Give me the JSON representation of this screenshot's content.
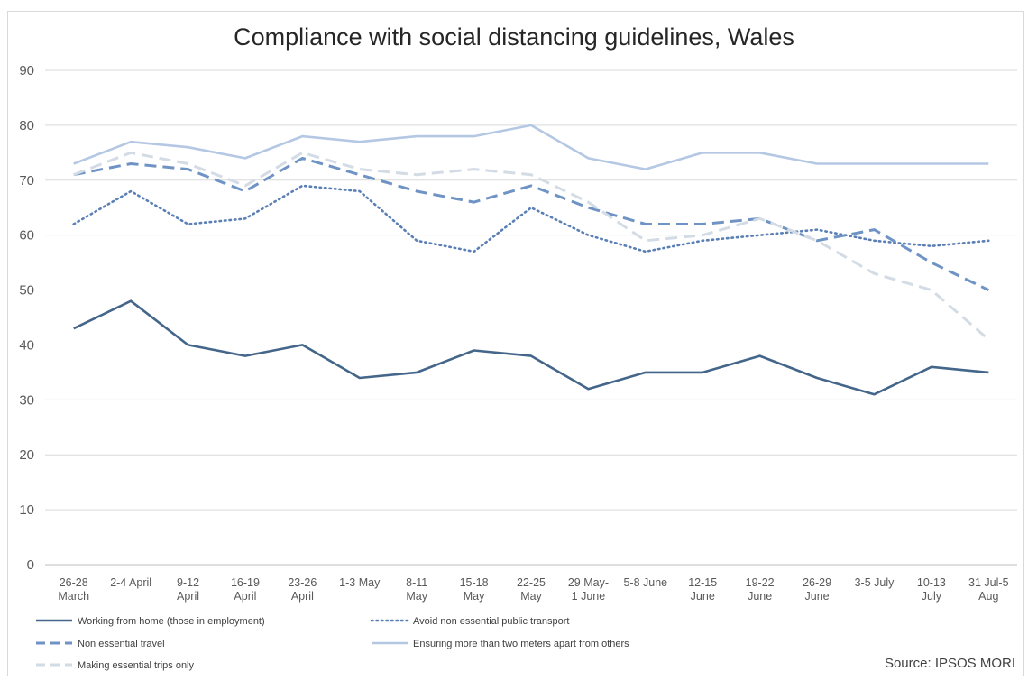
{
  "chart_data": {
    "type": "line",
    "title": "Compliance with social distancing guidelines, Wales",
    "source": "Source: IPSOS MORI",
    "ylim": [
      0,
      90
    ],
    "yticks": [
      0,
      10,
      20,
      30,
      40,
      50,
      60,
      70,
      80,
      90
    ],
    "grid": true,
    "legend_position": "bottom",
    "categories": [
      [
        "26-28",
        "March"
      ],
      [
        "2-4 April"
      ],
      [
        "9-12",
        "April"
      ],
      [
        "16-19",
        "April"
      ],
      [
        "23-26",
        "April"
      ],
      [
        "1-3 May"
      ],
      [
        "8-11",
        "May"
      ],
      [
        "15-18",
        "May"
      ],
      [
        "22-25",
        "May"
      ],
      [
        "29 May-",
        "1 June"
      ],
      [
        "5-8 June"
      ],
      [
        "12-15",
        "June"
      ],
      [
        "19-22",
        "June"
      ],
      [
        "26-29",
        "June"
      ],
      [
        "3-5 July"
      ],
      [
        "10-13",
        "July"
      ],
      [
        "31 Jul-5",
        "Aug"
      ]
    ],
    "series": [
      {
        "name": "Working from home (those in employment)",
        "color": "#44668a",
        "style": "solid",
        "values": [
          43,
          48,
          40,
          38,
          40,
          34,
          35,
          39,
          38,
          32,
          35,
          35,
          38,
          34,
          31,
          36,
          35
        ]
      },
      {
        "name": "Avoid non essential public transport",
        "color": "#5a7fb5",
        "style": "dotted",
        "values": [
          62,
          68,
          62,
          63,
          69,
          68,
          59,
          57,
          65,
          60,
          57,
          59,
          60,
          61,
          59,
          58,
          59
        ]
      },
      {
        "name": "Non essential travel",
        "color": "#6f93c4",
        "style": "dashed",
        "values": [
          71,
          73,
          72,
          68,
          74,
          71,
          68,
          66,
          69,
          65,
          62,
          62,
          63,
          59,
          61,
          55,
          50
        ]
      },
      {
        "name": "Ensuring more than two meters apart from others",
        "color": "#b4c8e4",
        "style": "solid",
        "values": [
          73,
          77,
          76,
          74,
          78,
          77,
          78,
          78,
          80,
          74,
          72,
          75,
          75,
          73,
          73,
          73,
          73
        ]
      },
      {
        "name": "Making essential trips only",
        "color": "#d3dbe5",
        "style": "dashed",
        "values": [
          71,
          75,
          73,
          69,
          75,
          72,
          71,
          72,
          71,
          66,
          59,
          60,
          63,
          59,
          53,
          50,
          41
        ]
      }
    ]
  }
}
